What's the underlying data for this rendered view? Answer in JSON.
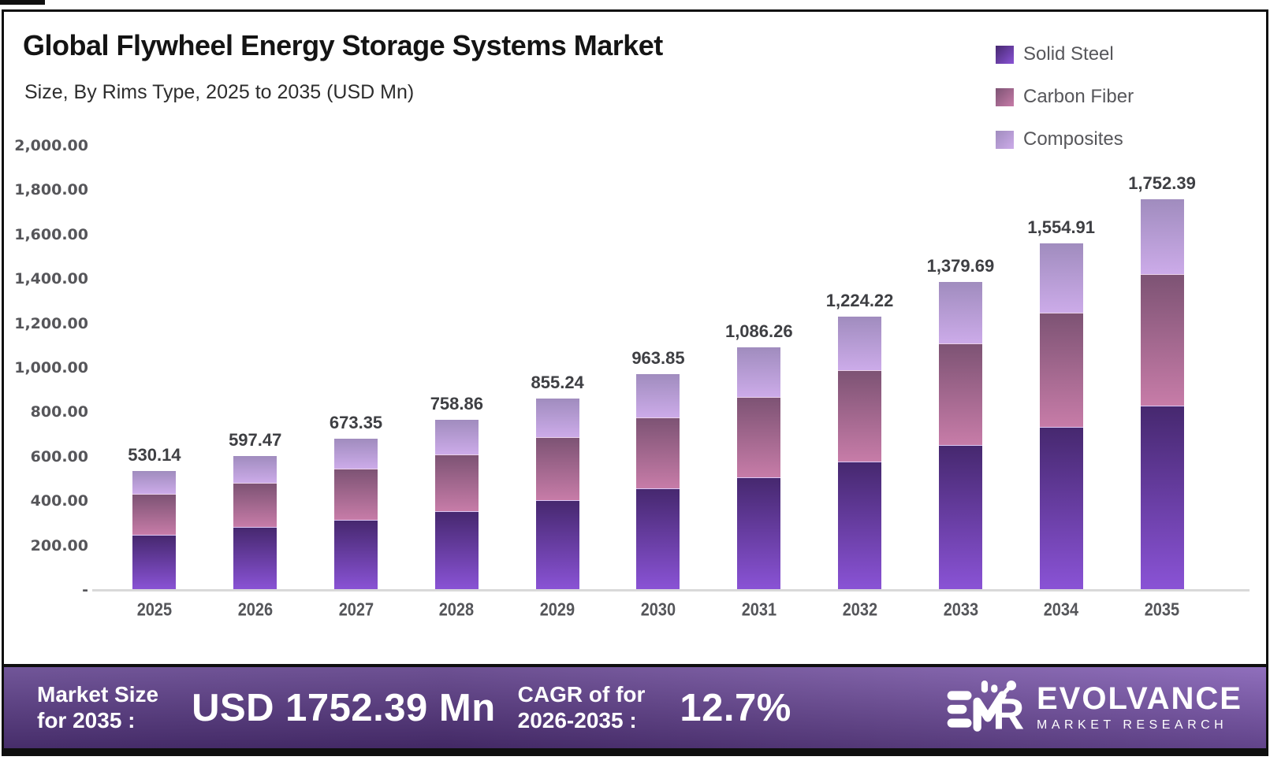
{
  "header": {
    "title": "Global Flywheel Energy Storage Systems Market",
    "subtitle": "Size, By Rims Type, 2025 to 2035 (USD Mn)"
  },
  "chart_data": {
    "type": "bar",
    "stacked": true,
    "title": "Global Flywheel Energy Storage Systems Market",
    "subtitle": "Size, By Rims Type, 2025 to 2035 (USD Mn)",
    "unit": "USD Mn",
    "categories": [
      "2025",
      "2026",
      "2027",
      "2028",
      "2029",
      "2030",
      "2031",
      "2032",
      "2033",
      "2034",
      "2035"
    ],
    "series": [
      {
        "name": "Solid Steel",
        "color_top": "#46286f",
        "color_bottom": "#8a53d6",
        "values": [
          246.0,
          281.0,
          313.0,
          351.0,
          400.0,
          453.0,
          504.0,
          575.0,
          650.0,
          730.0,
          826.0
        ]
      },
      {
        "name": "Carbon Fiber",
        "color_top": "#7d5374",
        "color_bottom": "#c77ca8",
        "values": [
          179.0,
          193.0,
          225.0,
          252.0,
          281.0,
          317.0,
          357.0,
          409.0,
          453.0,
          512.0,
          589.0
        ]
      },
      {
        "name": "Composites",
        "color_top": "#a08cbe",
        "color_bottom": "#ccabe9",
        "values": [
          105.14,
          123.47,
          135.35,
          155.86,
          174.24,
          193.85,
          225.26,
          240.22,
          276.69,
          312.91,
          337.39
        ]
      }
    ],
    "totals": [
      530.14,
      597.47,
      673.35,
      758.86,
      855.24,
      963.85,
      1086.26,
      1224.22,
      1379.69,
      1554.91,
      1752.39
    ],
    "total_labels": [
      "530.14",
      "597.47",
      "673.35",
      "758.86",
      "855.24",
      "963.85",
      "1,086.26",
      "1,224.22",
      "1,379.69",
      "1,554.91",
      "1,752.39"
    ],
    "ylim": [
      0,
      2000
    ],
    "ytick_labels": [
      "2,000.00",
      "1,800.00",
      "1,600.00",
      "1,400.00",
      "1,200.00",
      "1,000.00",
      "800.00",
      "600.00",
      "400.00",
      "200.00",
      "-"
    ],
    "grid": false,
    "legend_position": "top-right",
    "axis_line_color": "#d9d9d9"
  },
  "footer": {
    "label1_line1": "Market Size",
    "label1_line2": "for 2035 :",
    "value1": "USD 1752.39 Mn",
    "label2_line1": "CAGR of for",
    "label2_line2": "2026-2035 :",
    "value2": "12.7%",
    "brand_name": "EVOLVANCE",
    "brand_sub": "MARKET RESEARCH"
  }
}
